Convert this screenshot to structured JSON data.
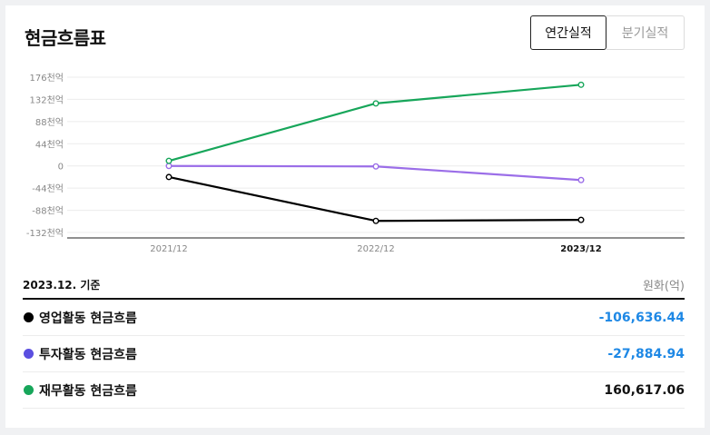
{
  "header": {
    "title": "현금흐름표"
  },
  "tabs": [
    {
      "label": "연간실적",
      "active": true
    },
    {
      "label": "분기실적",
      "active": false
    }
  ],
  "chart_data": {
    "type": "line",
    "x": [
      "2021/12",
      "2022/12",
      "2023/12"
    ],
    "y_ticks": [
      "176천억",
      "132천억",
      "88천억",
      "44천억",
      "0",
      "-44천억",
      "-88천억",
      "-132천억"
    ],
    "y_tick_values": [
      176,
      132,
      88,
      44,
      0,
      -44,
      -88,
      -132
    ],
    "ylim": [
      -132,
      176
    ],
    "ylabel": "",
    "xlabel": "",
    "grid": true,
    "highlighted_x": "2023/12",
    "series": [
      {
        "name": "영업활동 현금흐름",
        "color": "#000000",
        "values": [
          -22,
          -109,
          -107
        ]
      },
      {
        "name": "투자활동 현금흐름",
        "color": "#9b6ee8",
        "values": [
          0,
          -1,
          -28
        ]
      },
      {
        "name": "재무활동 현금흐름",
        "color": "#17a65a",
        "values": [
          10,
          124,
          161
        ]
      }
    ]
  },
  "table": {
    "basis": "2023.12. 기준",
    "unit": "원화(억)",
    "rows": [
      {
        "label": "영업활동 현금흐름",
        "value": "-106,636.44",
        "dot_color": "#000000",
        "value_color": "#1e88e5"
      },
      {
        "label": "투자활동 현금흐름",
        "value": "-27,884.94",
        "dot_color": "#5b4fe0",
        "value_color": "#1e88e5"
      },
      {
        "label": "재무활동 현금흐름",
        "value": "160,617.06",
        "dot_color": "#17a65a",
        "value_color": "#111111"
      }
    ]
  }
}
